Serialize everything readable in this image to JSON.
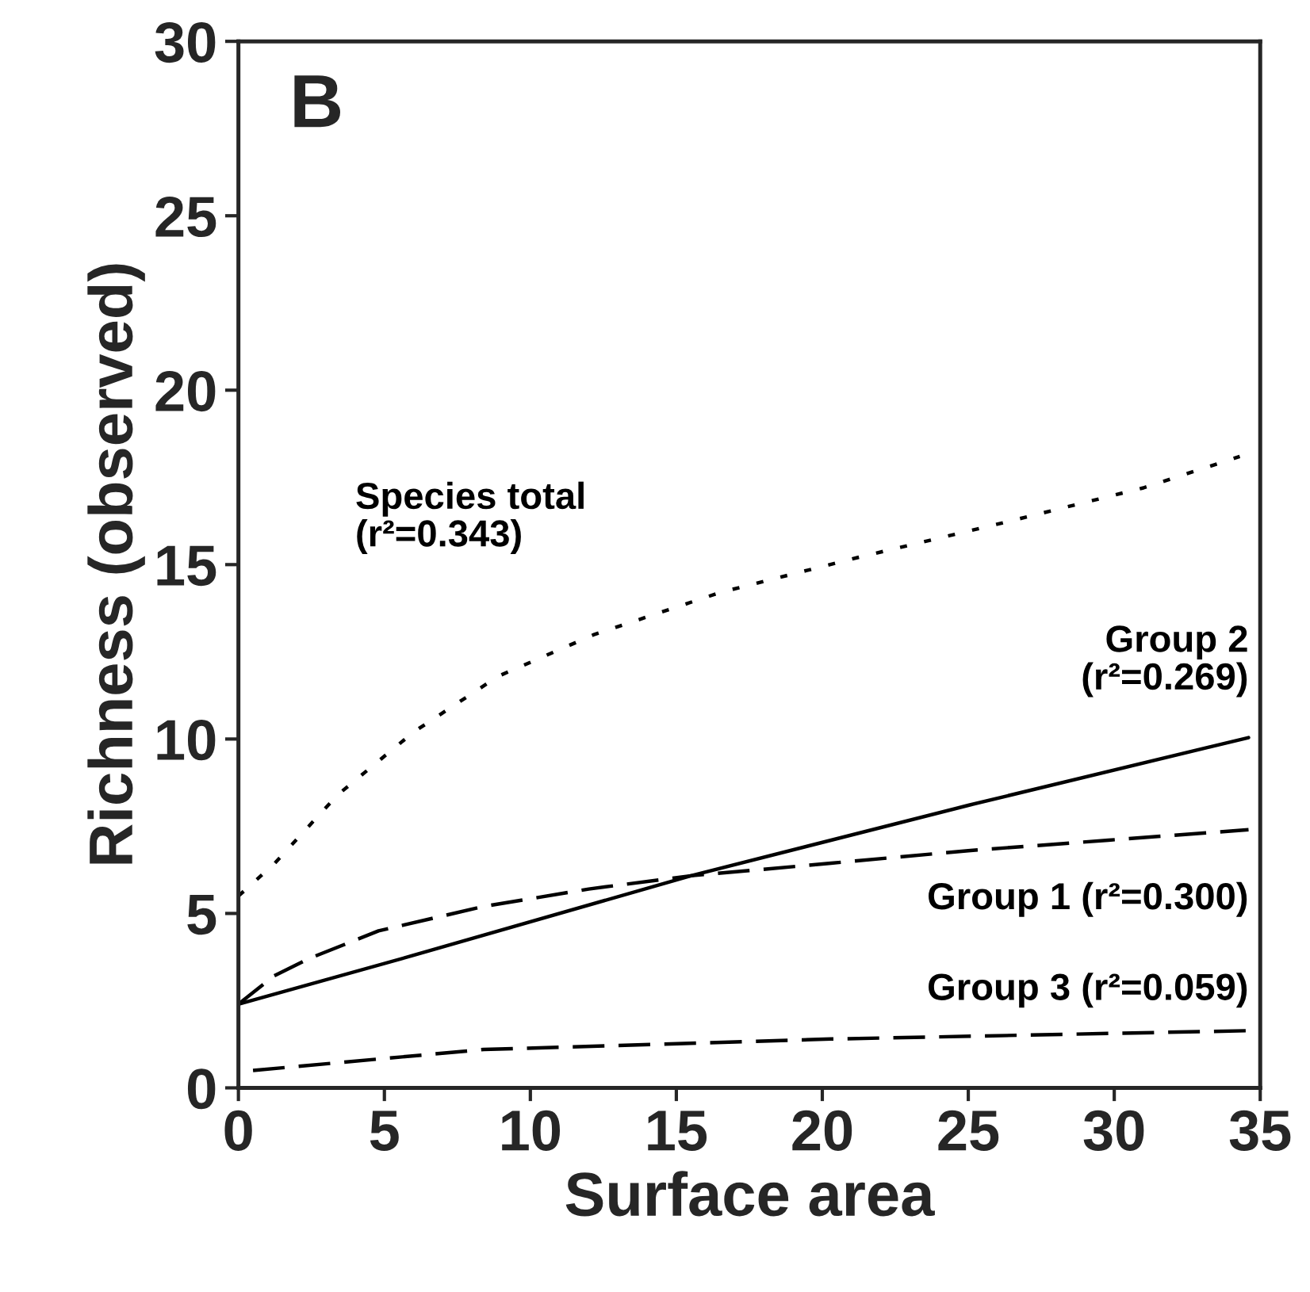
{
  "chart_data": {
    "type": "line",
    "title": "B",
    "xlabel": "Surface area",
    "ylabel": "Richness (observed)",
    "xlim": [
      0,
      35
    ],
    "ylim": [
      0,
      30
    ],
    "xticks": [
      0,
      5,
      10,
      15,
      20,
      25,
      30,
      35
    ],
    "yticks": [
      0,
      5,
      10,
      15,
      20,
      25,
      30
    ],
    "grid": false,
    "legend": false,
    "marker": "none",
    "series": [
      {
        "name": "Species total\n(r²=0.343)",
        "color": "#000000",
        "line_style": "dotted",
        "x": [
          0,
          1.2,
          3.4,
          6,
          8.9,
          12.2,
          16.5,
          21.2,
          26.2,
          31,
          34.3
        ],
        "values": [
          5.5,
          6.4,
          8.4,
          10.2,
          11.8,
          13,
          14.2,
          15.2,
          16.2,
          17.2,
          18.1
        ]
      },
      {
        "name": "Group 2\n(r²=0.269)",
        "color": "#000000",
        "line_style": "solid",
        "x": [
          0,
          6,
          15.5,
          25,
          34.6
        ],
        "values": [
          2.4,
          3.8,
          6.08,
          8.1,
          10.04
        ]
      },
      {
        "name": "Group 1 (r²=0.300)",
        "color": "#000000",
        "line_style": "dashed",
        "x": [
          0,
          1.2,
          2.4,
          4.8,
          8.4,
          12,
          15.5,
          20.3,
          25,
          29.8,
          34.6
        ],
        "values": [
          2.4,
          3.2,
          3.7,
          4.5,
          5.2,
          5.7,
          6.08,
          6.44,
          6.8,
          7.1,
          7.4
        ]
      },
      {
        "name": "Group 3 (r²=0.059)",
        "color": "#000000",
        "line_style": "dashed",
        "x": [
          0.5,
          8.4,
          20.3,
          34.6
        ],
        "values": [
          0.5,
          1.1,
          1.4,
          1.64
        ]
      }
    ]
  }
}
